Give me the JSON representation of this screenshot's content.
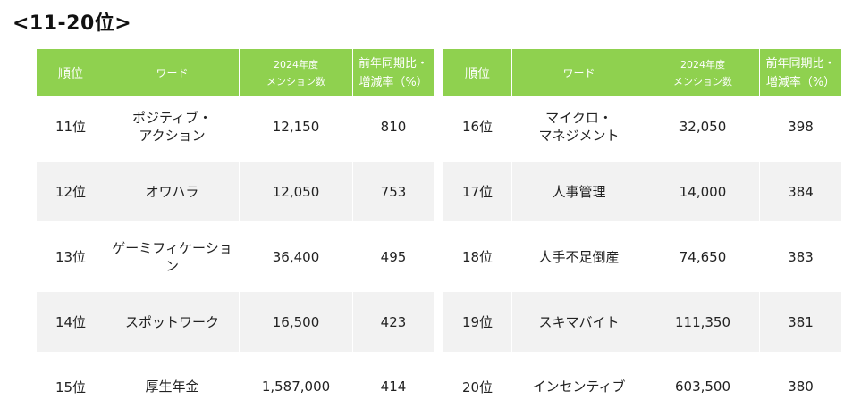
{
  "title": "<11-20位>",
  "headers": {
    "rank": "順位",
    "word": "ワード",
    "count_line1": "2024年度",
    "count_line2": "メンション数",
    "ratio_line1": "前年同期比・",
    "ratio_line2": "増減率（%）"
  },
  "left_rows": [
    {
      "rank": "11位",
      "word_line1": "ポジティブ・",
      "word_line2": "アクション",
      "count": "12,150",
      "ratio": "810"
    },
    {
      "rank": "12位",
      "word_line1": "オワハラ",
      "word_line2": "",
      "count": "12,050",
      "ratio": "753"
    },
    {
      "rank": "13位",
      "word_line1": "ゲーミフィケーション",
      "word_line2": "",
      "count": "36,400",
      "ratio": "495"
    },
    {
      "rank": "14位",
      "word_line1": "スポットワーク",
      "word_line2": "",
      "count": "16,500",
      "ratio": "423"
    },
    {
      "rank": "15位",
      "word_line1": "厚生年金",
      "word_line2": "",
      "count": "1,587,000",
      "ratio": "414"
    }
  ],
  "right_rows": [
    {
      "rank": "16位",
      "word_line1": "マイクロ・",
      "word_line2": "マネジメント",
      "count": "32,050",
      "ratio": "398"
    },
    {
      "rank": "17位",
      "word_line1": "人事管理",
      "word_line2": "",
      "count": "14,000",
      "ratio": "384"
    },
    {
      "rank": "18位",
      "word_line1": "人手不足倒産",
      "word_line2": "",
      "count": "74,650",
      "ratio": "383"
    },
    {
      "rank": "19位",
      "word_line1": "スキマバイト",
      "word_line2": "",
      "count": "111,350",
      "ratio": "381"
    },
    {
      "rank": "20位",
      "word_line1": "インセンティブ",
      "word_line2": "",
      "count": "603,500",
      "ratio": "380"
    }
  ],
  "colors": {
    "header_bg": "#8fd14f",
    "row_shade": "#f2f2f2"
  }
}
